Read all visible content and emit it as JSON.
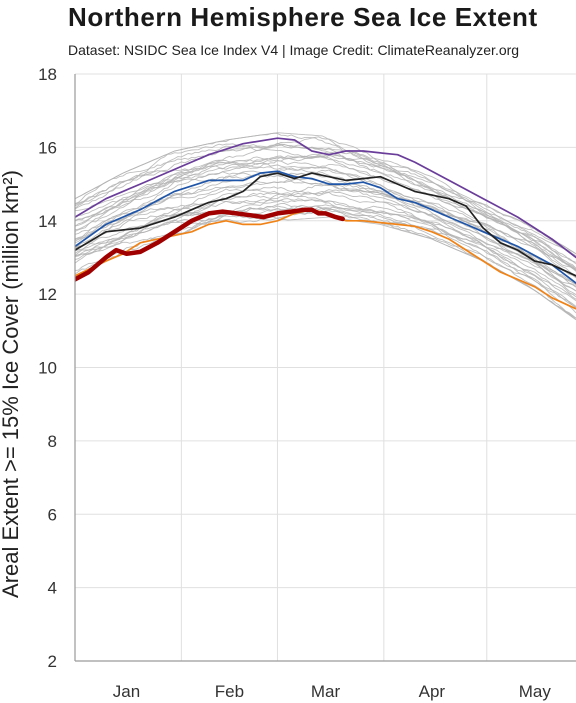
{
  "chart_data": {
    "type": "line",
    "title": "Northern Hemisphere Sea Ice Extent",
    "subtitle": "Dataset: NSIDC Sea Ice Index V4 | Image Credit: ClimateReanalyzer.org",
    "ylabel": "Areal Extent >= 15% Ice Cover (million km²)",
    "xlabel": "",
    "x_unit": "day of year",
    "xlim": [
      1,
      147
    ],
    "ylim": [
      2,
      18
    ],
    "yticks": [
      2,
      4,
      6,
      8,
      10,
      12,
      14,
      16,
      18
    ],
    "month_ticks": [
      {
        "label": "Jan",
        "day": 16
      },
      {
        "label": "Feb",
        "day": 46
      },
      {
        "label": "Mar",
        "day": 74
      },
      {
        "label": "Apr",
        "day": 105
      },
      {
        "label": "May",
        "day": 135
      }
    ],
    "month_boundaries": [
      32,
      60,
      91,
      121
    ],
    "grid": true,
    "legend": "none",
    "colors": {
      "background_years": "#b3b3b3",
      "current_year": "#a00000",
      "black_series": "#222222",
      "blue_series": "#1f55a8",
      "orange_series": "#f08318",
      "purple_series": "#6a3d9a",
      "grid": "#e0e0e0"
    },
    "background_years": {
      "count": 34,
      "min_envelope": {
        "x": [
          1,
          15,
          30,
          45,
          60,
          75,
          90,
          105,
          120,
          135,
          147
        ],
        "y": [
          12.5,
          13.0,
          13.5,
          13.9,
          14.0,
          14.1,
          13.9,
          13.5,
          12.9,
          12.1,
          11.3
        ]
      },
      "max_envelope": {
        "x": [
          1,
          15,
          30,
          45,
          60,
          75,
          90,
          105,
          120,
          135,
          147
        ],
        "y": [
          14.6,
          15.3,
          15.9,
          16.2,
          16.4,
          16.3,
          15.8,
          15.2,
          14.5,
          13.8,
          13.1
        ]
      }
    },
    "series": [
      {
        "color": "#6a3d9a",
        "x": [
          1,
          10,
          20,
          30,
          40,
          50,
          60,
          65,
          70,
          75,
          80,
          85,
          90,
          95,
          100,
          110,
          120,
          130,
          140,
          147
        ],
        "y": [
          14.1,
          14.6,
          15.0,
          15.4,
          15.8,
          16.1,
          16.25,
          16.2,
          15.9,
          15.8,
          15.9,
          15.9,
          15.85,
          15.8,
          15.6,
          15.1,
          14.6,
          14.1,
          13.5,
          13.0
        ]
      },
      {
        "color": "#1f55a8",
        "x": [
          1,
          10,
          20,
          30,
          40,
          50,
          55,
          60,
          65,
          70,
          75,
          80,
          85,
          90,
          95,
          100,
          105,
          110,
          115,
          120,
          130,
          140,
          147
        ],
        "y": [
          13.3,
          13.9,
          14.3,
          14.8,
          15.1,
          15.1,
          15.3,
          15.35,
          15.2,
          15.15,
          15.0,
          15.0,
          15.05,
          14.9,
          14.6,
          14.5,
          14.3,
          14.1,
          13.9,
          13.7,
          13.3,
          12.8,
          12.3
        ]
      },
      {
        "color": "#222222",
        "x": [
          1,
          10,
          20,
          30,
          35,
          40,
          45,
          50,
          55,
          60,
          65,
          70,
          75,
          80,
          85,
          90,
          95,
          100,
          105,
          110,
          115,
          120,
          125,
          130,
          135,
          140,
          147
        ],
        "y": [
          13.2,
          13.7,
          13.8,
          14.1,
          14.3,
          14.5,
          14.6,
          14.8,
          15.2,
          15.3,
          15.15,
          15.3,
          15.2,
          15.1,
          15.15,
          15.2,
          15.0,
          14.8,
          14.7,
          14.6,
          14.4,
          13.8,
          13.4,
          13.2,
          12.9,
          12.8,
          12.5
        ]
      },
      {
        "color": "#f08318",
        "x": [
          1,
          10,
          15,
          20,
          25,
          30,
          35,
          40,
          45,
          50,
          55,
          60,
          65,
          70,
          75,
          80,
          85,
          90,
          95,
          100,
          105,
          110,
          115,
          120,
          125,
          130,
          135,
          140,
          147
        ],
        "y": [
          12.5,
          12.9,
          13.1,
          13.4,
          13.5,
          13.6,
          13.7,
          13.9,
          14.0,
          13.9,
          13.9,
          14.0,
          14.2,
          14.3,
          14.2,
          14.0,
          14.0,
          13.95,
          13.9,
          13.85,
          13.7,
          13.5,
          13.2,
          12.9,
          12.6,
          12.4,
          12.2,
          11.9,
          11.6
        ]
      },
      {
        "color": "#a00000",
        "current": true,
        "x": [
          1,
          5,
          10,
          13,
          16,
          20,
          25,
          30,
          35,
          40,
          44,
          48,
          52,
          56,
          60,
          64,
          68,
          70,
          72,
          74,
          77,
          79
        ],
        "y": [
          12.4,
          12.6,
          13.0,
          13.2,
          13.1,
          13.15,
          13.4,
          13.7,
          14.0,
          14.2,
          14.25,
          14.2,
          14.15,
          14.1,
          14.2,
          14.25,
          14.3,
          14.3,
          14.2,
          14.2,
          14.1,
          14.05
        ]
      }
    ]
  }
}
